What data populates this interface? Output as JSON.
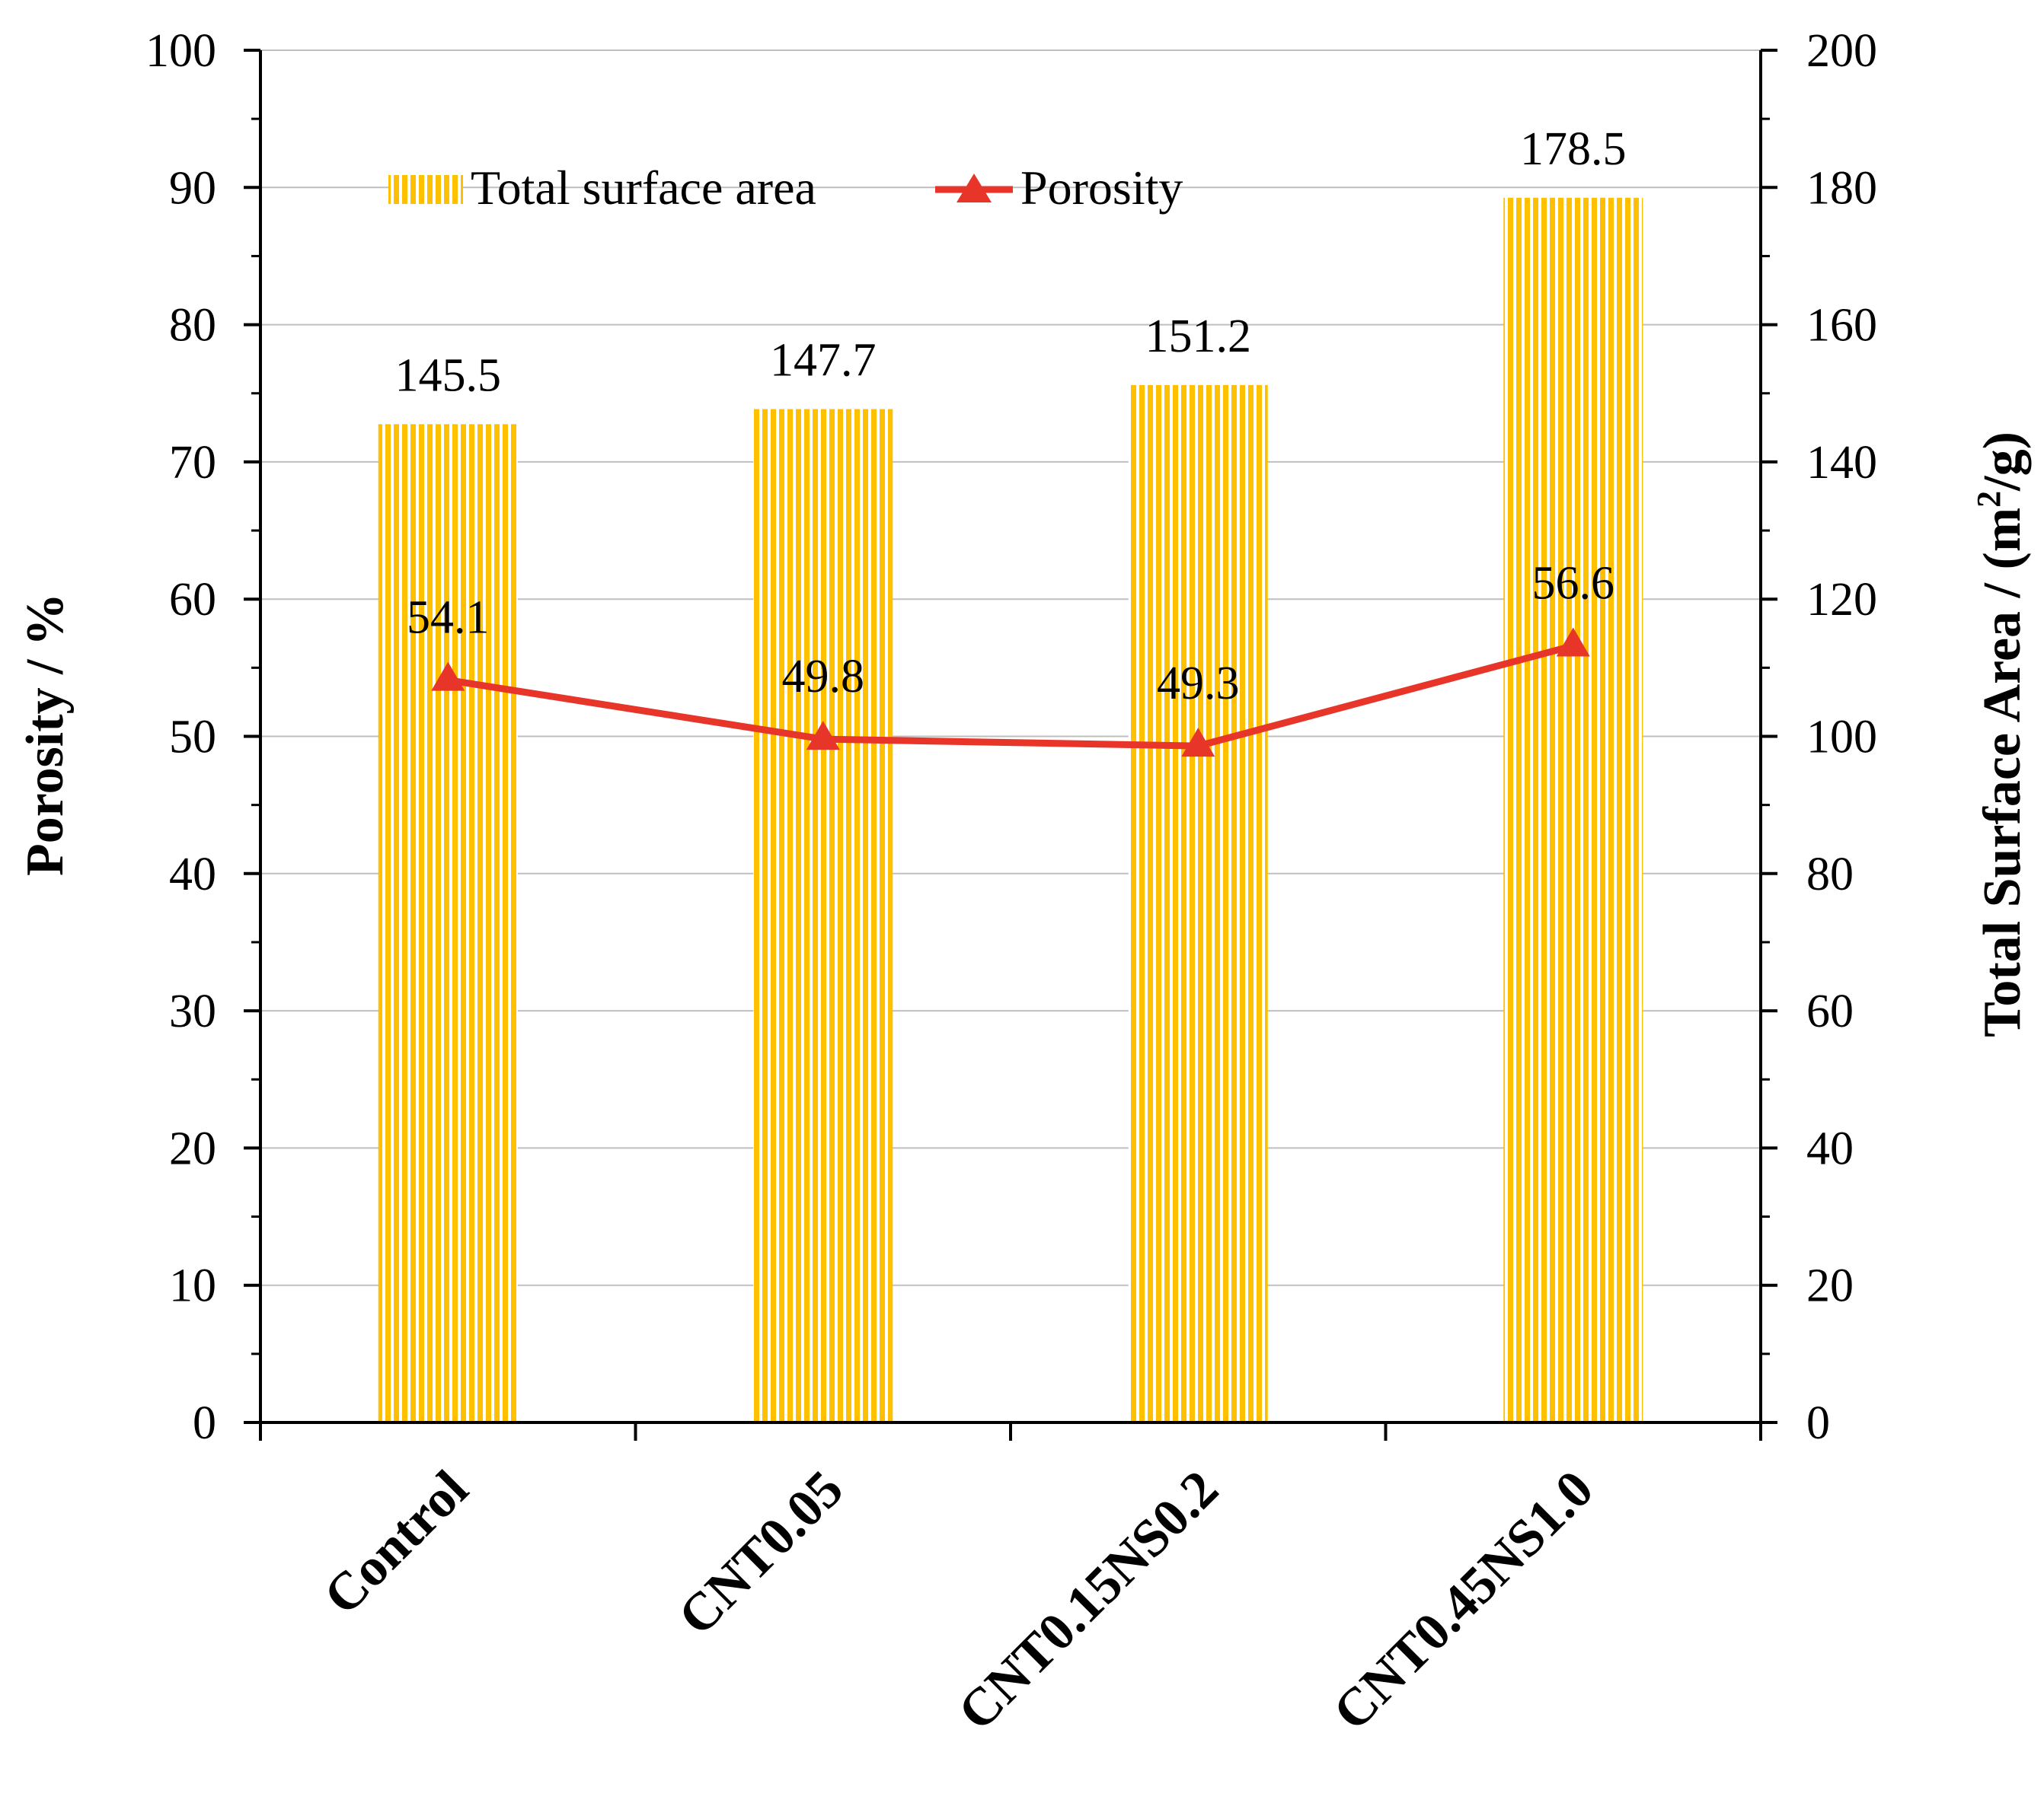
{
  "colors": {
    "bar": "#FFC000",
    "bar_stripe": "#FFFFFF",
    "line": "#E8352A",
    "axis": "#000000",
    "grid": "#BFBFBF"
  },
  "chart_data": {
    "type": "bar",
    "categories": [
      "Control",
      "CNT0.05",
      "CNT0.15NS0.2",
      "CNT0.45NS1.0"
    ],
    "series": [
      {
        "name": "Total surface area",
        "type": "bar",
        "axis": "right",
        "values": [
          145.5,
          147.7,
          151.2,
          178.5
        ],
        "value_labels": [
          "145.5",
          "147.7",
          "151.2",
          "178.5"
        ]
      },
      {
        "name": "Porosity",
        "type": "line",
        "axis": "left",
        "marker": "triangle",
        "values": [
          54.1,
          49.8,
          49.3,
          56.6
        ],
        "value_labels": [
          "54.1",
          "49.8",
          "49.3",
          "56.6"
        ]
      }
    ],
    "left_axis": {
      "label": "Porosity / %",
      "ylim": [
        0,
        100
      ],
      "ticks": [
        0,
        10,
        20,
        30,
        40,
        50,
        60,
        70,
        80,
        90,
        100
      ]
    },
    "right_axis": {
      "label_main": "Total Surface Area / (m",
      "label_sup": "2",
      "label_end": "/g)",
      "ylim": [
        0,
        200
      ],
      "ticks": [
        0,
        20,
        40,
        60,
        80,
        100,
        120,
        140,
        160,
        180,
        200
      ]
    },
    "grid": true,
    "legend": {
      "position": "top-left",
      "entries": [
        "Total surface area",
        "Porosity"
      ]
    }
  }
}
